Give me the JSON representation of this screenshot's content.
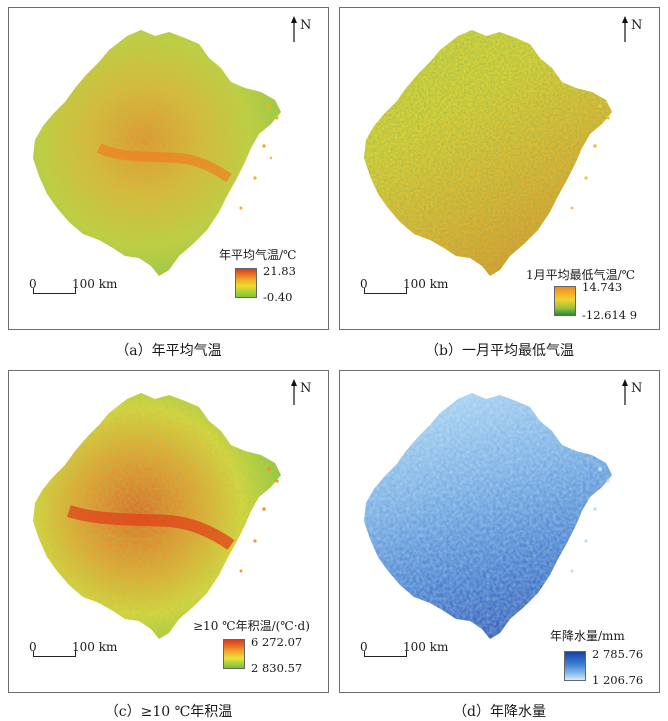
{
  "panels": [
    {
      "id": "a",
      "caption": "（a）年平均气温",
      "legend_title": "年平均气温/℃",
      "legend_max": "21.83",
      "legend_min": "-0.40",
      "palette": [
        "#d63a1c",
        "#f3a12a",
        "#eddc2c",
        "#7cc63a"
      ],
      "scale_zero": "0",
      "scale_label": "100 km",
      "north": "N"
    },
    {
      "id": "b",
      "caption": "（b）一月平均最低气温",
      "legend_title": "1月平均最低气温/℃",
      "legend_max": "14.743",
      "legend_min": "-12.614 9",
      "palette": [
        "#f28a1c",
        "#f1d22e",
        "#9bc33a",
        "#2b8a3a"
      ],
      "scale_zero": "0",
      "scale_label": "100 km",
      "north": "N"
    },
    {
      "id": "c",
      "caption": "（c）≥10 ℃年积温",
      "legend_title": "≥10 ℃年积温/(℃·d)",
      "legend_max": "6 272.07",
      "legend_min": "2 830.57",
      "palette": [
        "#d73a1c",
        "#f3a12a",
        "#ece23a",
        "#72c23a"
      ],
      "scale_zero": "0",
      "scale_label": "100 km",
      "north": "N"
    },
    {
      "id": "d",
      "caption": "（d）年降水量",
      "legend_title": "年降水量/mm",
      "legend_max": "2 785.76",
      "legend_min": "1 206.76",
      "palette": [
        "#1b3fa8",
        "#3f82d4",
        "#8fc1ec",
        "#d6ecfb"
      ],
      "scale_zero": "0",
      "scale_label": "100 km",
      "north": "N"
    }
  ]
}
